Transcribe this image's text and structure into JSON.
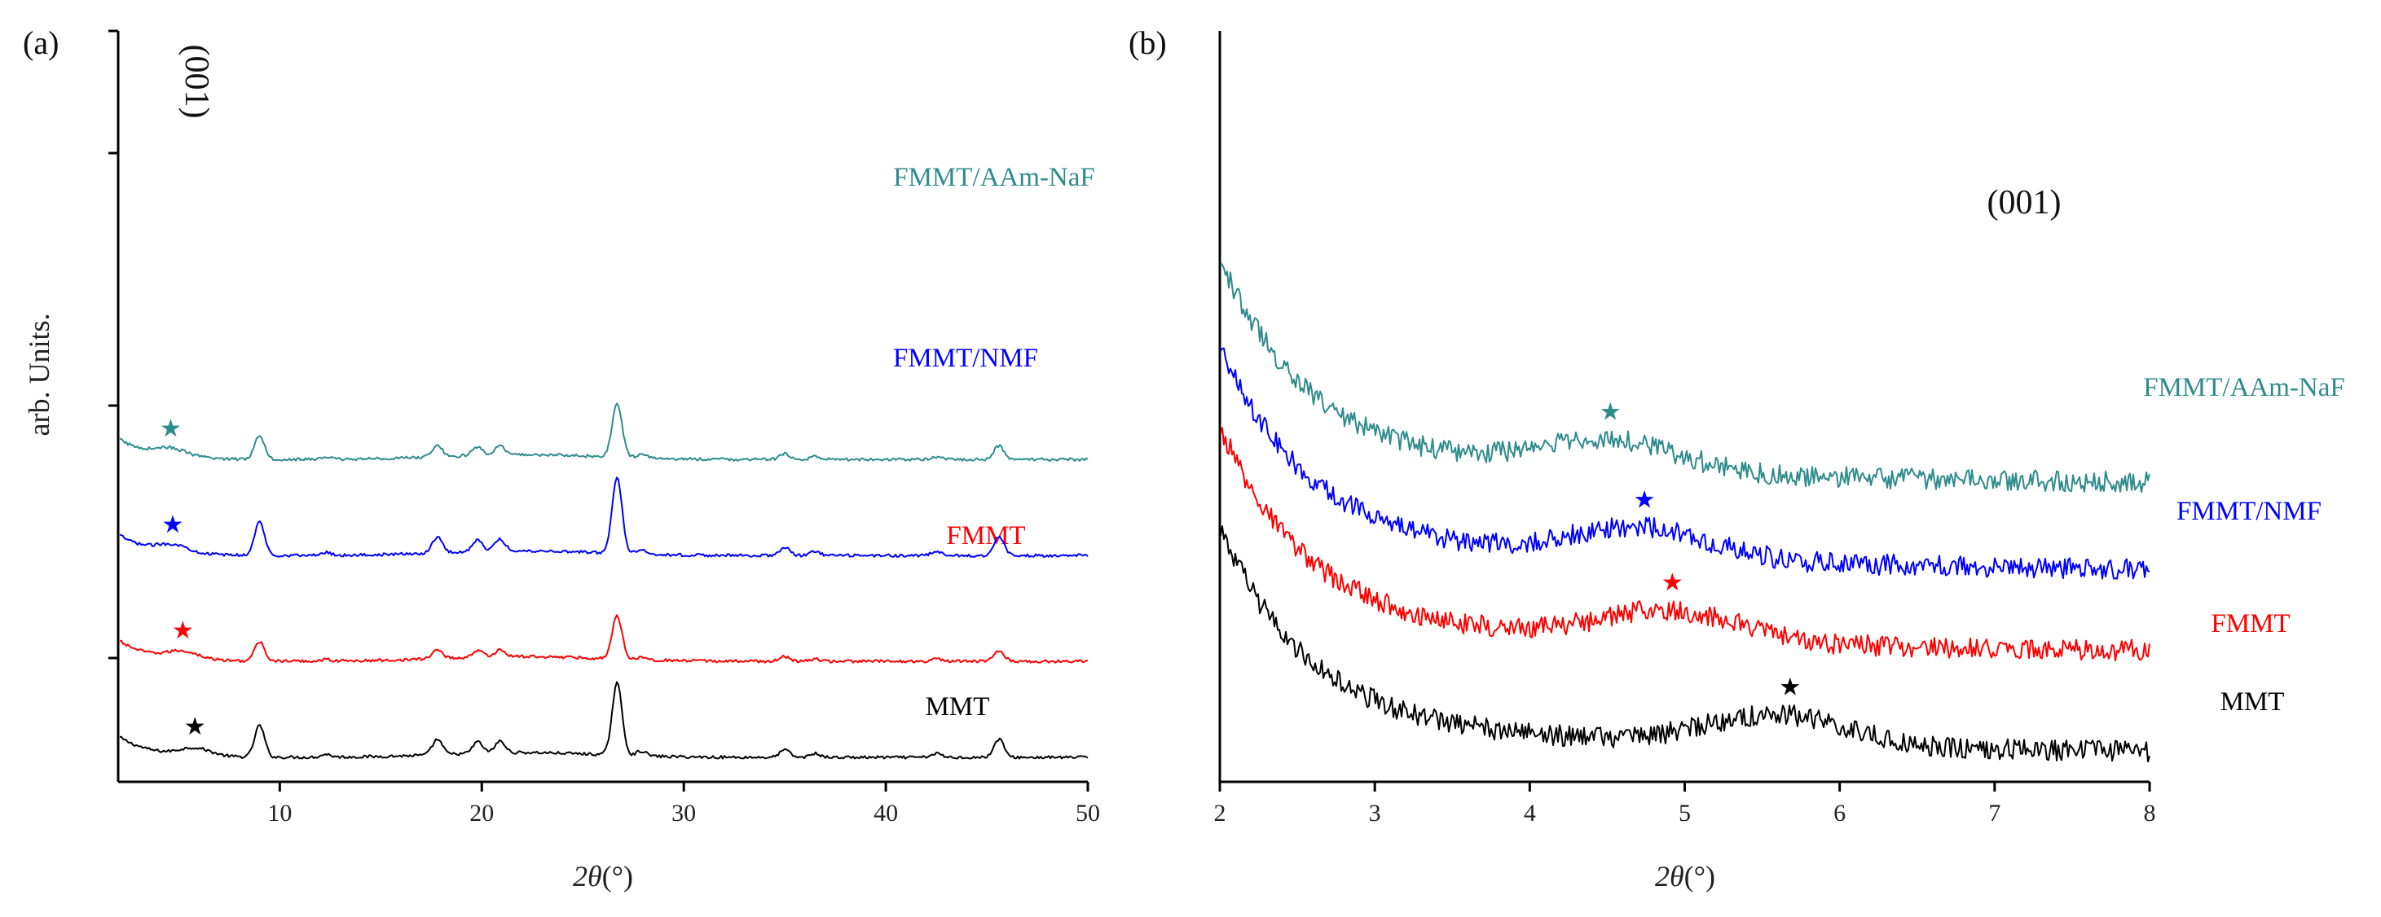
{
  "chart_data": [
    {
      "type": "line",
      "panel": "(a)",
      "xlabel_var": "2θ",
      "xlabel_unit": "(°)",
      "ylabel": "arb. Units.",
      "xlim": [
        2,
        50
      ],
      "ylim": [
        0,
        4.4
      ],
      "xticks": [
        10,
        20,
        30,
        40,
        50
      ],
      "annotation": "(001)",
      "series": [
        {
          "name": "MMT",
          "color": "#000000",
          "offset": 0.0,
          "scale": 1.0,
          "star_x": 5.8
        },
        {
          "name": "FMMT",
          "color": "#ff0000",
          "offset": 1.0,
          "scale": 0.6,
          "star_x": 5.2
        },
        {
          "name": "FMMT/NMF",
          "color": "#0000ff",
          "offset": 2.1,
          "scale": 1.05,
          "star_x": 4.7
        },
        {
          "name": "FMMT/AAm-NaF",
          "color": "#2e8b8b",
          "offset": 3.1,
          "scale": 0.75,
          "star_x": 4.6
        }
      ],
      "peaks": [
        {
          "x": 9.0,
          "h": 0.33
        },
        {
          "x": 12.3,
          "h": 0.03
        },
        {
          "x": 17.8,
          "h": 0.16
        },
        {
          "x": 19.8,
          "h": 0.12
        },
        {
          "x": 20.9,
          "h": 0.12
        },
        {
          "x": 26.7,
          "h": 0.75
        },
        {
          "x": 27.9,
          "h": 0.05
        },
        {
          "x": 35.0,
          "h": 0.08
        },
        {
          "x": 36.5,
          "h": 0.04
        },
        {
          "x": 42.5,
          "h": 0.04
        },
        {
          "x": 45.6,
          "h": 0.19
        }
      ]
    },
    {
      "type": "line",
      "panel": "(b)",
      "xlabel_var": "2θ",
      "xlabel_unit": "(°)",
      "xlim": [
        2,
        8
      ],
      "ylim": [
        0,
        4.4
      ],
      "xticks": [
        2,
        3,
        4,
        5,
        6,
        7,
        8
      ],
      "annotation": "(001)",
      "series": [
        {
          "name": "MMT",
          "color": "#000000",
          "offset": 0.0,
          "peak_x": 5.6,
          "star_x": 5.68
        },
        {
          "name": "FMMT",
          "color": "#ff0000",
          "offset": 1.05,
          "peak_x": 4.9,
          "star_x": 4.92
        },
        {
          "name": "FMMT/NMF",
          "color": "#0000ff",
          "offset": 1.9,
          "peak_x": 4.7,
          "star_x": 4.74
        },
        {
          "name": "FMMT/AAm-NaF",
          "color": "#2e8b8b",
          "offset": 2.8,
          "peak_x": 4.5,
          "star_x": 4.52
        }
      ]
    }
  ]
}
